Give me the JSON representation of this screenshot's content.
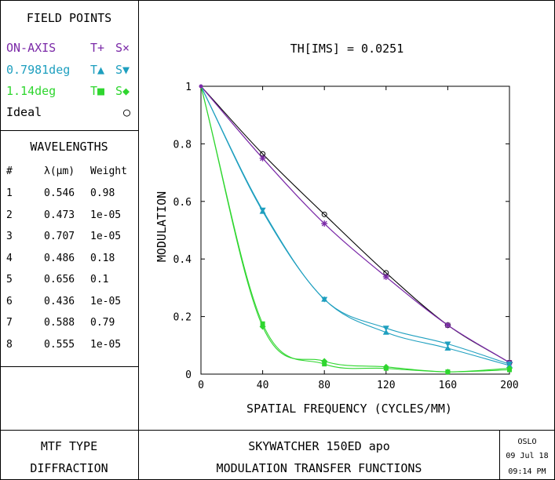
{
  "field_points": {
    "title": "FIELD POINTS",
    "entries": [
      {
        "label": "ON-AXIS",
        "t": "T+",
        "s": "S×",
        "color": "#7b2aa8"
      },
      {
        "label": "0.7981deg",
        "t": "T▲",
        "s": "S▼",
        "color": "#1e9fbf"
      },
      {
        "label": "1.14deg",
        "t": "T■",
        "s": "S◆",
        "color": "#2fd62f"
      },
      {
        "label": "Ideal",
        "t": "",
        "s": "○",
        "color": "#000000"
      }
    ]
  },
  "wavelengths": {
    "title": "WAVELENGTHS",
    "headers": {
      "num": "#",
      "lambda": "λ(µm)",
      "weight": "Weight"
    },
    "rows": [
      {
        "num": "1",
        "lambda": "0.546",
        "weight": "0.98"
      },
      {
        "num": "2",
        "lambda": "0.473",
        "weight": "1e-05"
      },
      {
        "num": "3",
        "lambda": "0.707",
        "weight": "1e-05"
      },
      {
        "num": "4",
        "lambda": "0.486",
        "weight": "0.18"
      },
      {
        "num": "5",
        "lambda": "0.656",
        "weight": "0.1"
      },
      {
        "num": "6",
        "lambda": "0.436",
        "weight": "1e-05"
      },
      {
        "num": "7",
        "lambda": "0.588",
        "weight": "0.79"
      },
      {
        "num": "8",
        "lambda": "0.555",
        "weight": "1e-05"
      }
    ]
  },
  "footer": {
    "mtf_type_label": "MTF TYPE",
    "mtf_type_value": "DIFFRACTION",
    "lens_name": "SKYWATCHER 150ED apo",
    "plot_name": "MODULATION TRANSFER FUNCTIONS",
    "program": "OSLO",
    "date": "09 Jul 18",
    "time": "09:14 PM"
  },
  "chart_data": {
    "type": "line",
    "title": "TH[IMS] = 0.0251",
    "xlabel": "SPATIAL FREQUENCY (CYCLES/MM)",
    "ylabel": "MODULATION",
    "xlim": [
      0,
      200
    ],
    "ylim": [
      0,
      1
    ],
    "xticks": [
      "0",
      "40",
      "80",
      "120",
      "160",
      "200"
    ],
    "yticks": [
      "0",
      "0.2",
      "0.4",
      "0.6",
      "0.8",
      "1"
    ],
    "series": [
      {
        "name": "Ideal",
        "color": "#000000",
        "marker": "circle",
        "x": [
          0,
          40,
          80,
          120,
          160,
          200
        ],
        "y": [
          1,
          0.765,
          0.555,
          0.352,
          0.17,
          0.04
        ]
      },
      {
        "name": "ON-AXIS T",
        "color": "#7b2aa8",
        "marker": "plus",
        "x": [
          0,
          40,
          80,
          120,
          160,
          200
        ],
        "y": [
          1,
          0.75,
          0.523,
          0.338,
          0.17,
          0.04
        ]
      },
      {
        "name": "ON-AXIS S",
        "color": "#7b2aa8",
        "marker": "cross",
        "x": [
          0,
          40,
          80,
          120,
          160,
          200
        ],
        "y": [
          1,
          0.75,
          0.523,
          0.338,
          0.17,
          0.04
        ]
      },
      {
        "name": "0.7981deg T",
        "color": "#1e9fbf",
        "marker": "triangle-up",
        "x": [
          0,
          40,
          80,
          120,
          160,
          200
        ],
        "y": [
          1,
          0.565,
          0.26,
          0.145,
          0.09,
          0.03
        ]
      },
      {
        "name": "0.7981deg S",
        "color": "#1e9fbf",
        "marker": "triangle-down",
        "x": [
          0,
          40,
          80,
          120,
          160,
          200
        ],
        "y": [
          1,
          0.57,
          0.26,
          0.16,
          0.105,
          0.035
        ]
      },
      {
        "name": "1.14deg T",
        "color": "#2fd62f",
        "marker": "square",
        "x": [
          0,
          40,
          80,
          120,
          160,
          200
        ],
        "y": [
          1,
          0.175,
          0.035,
          0.02,
          0.008,
          0.015
        ]
      },
      {
        "name": "1.14deg S",
        "color": "#2fd62f",
        "marker": "diamond",
        "x": [
          0,
          40,
          80,
          120,
          160,
          200
        ],
        "y": [
          1,
          0.165,
          0.045,
          0.025,
          0.008,
          0.02
        ]
      }
    ]
  }
}
